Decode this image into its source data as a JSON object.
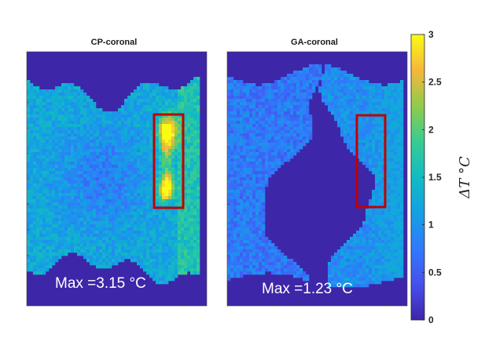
{
  "chart_data": [
    {
      "type": "heatmap",
      "title": "CP-coronal",
      "annotation": "Max =3.15 °C",
      "max_value": 3.15,
      "highlight_box_color": "#c00000",
      "background_value": 0
    },
    {
      "type": "heatmap",
      "title": "GA-coronal",
      "annotation": "Max =1.23 °C",
      "max_value": 1.23,
      "highlight_box_color": "#c00000",
      "background_value": 0
    }
  ],
  "colorbar": {
    "colormap": "parula",
    "range": [
      0,
      3
    ],
    "ticks": [
      "0",
      "0.5",
      "1",
      "1.5",
      "2",
      "2.5",
      "3"
    ],
    "tick_values": [
      0,
      0.5,
      1,
      1.5,
      2,
      2.5,
      3
    ],
    "label": "ΔT   °C"
  }
}
